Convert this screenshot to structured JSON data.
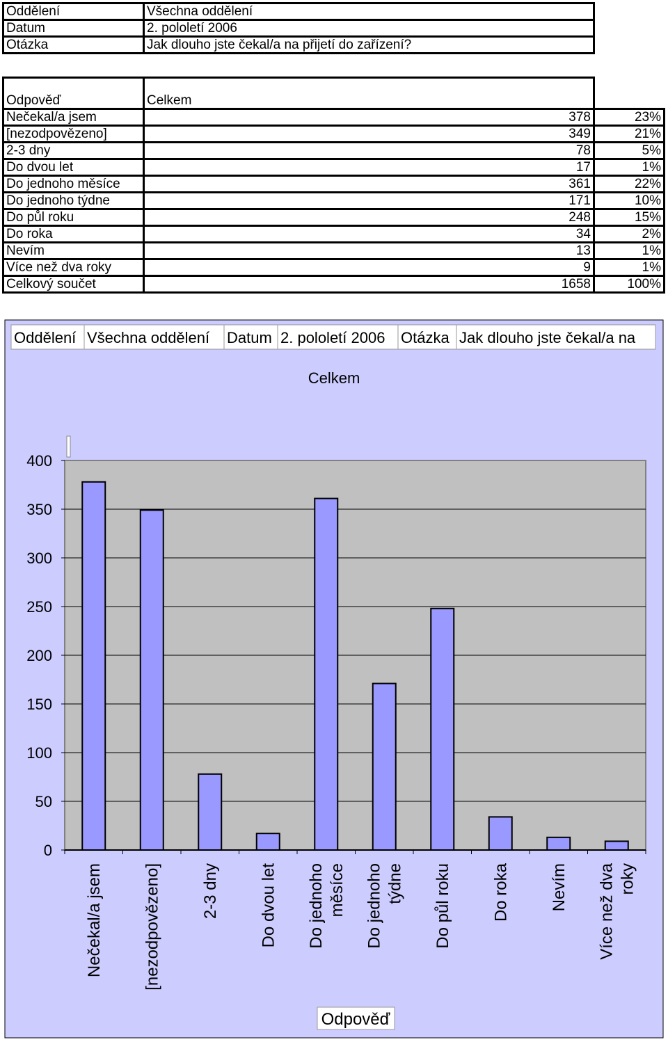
{
  "header": {
    "rows": [
      {
        "key": "Oddělení",
        "value": "Všechna oddělení"
      },
      {
        "key": "Datum",
        "value": "2. pololetí 2006"
      },
      {
        "key": "Otázka",
        "value": "Jak dlouho jste čekal/a na přijetí do zařízení?"
      }
    ]
  },
  "table": {
    "col_answer": "Odpověď",
    "col_total": "Celkem",
    "rows": [
      {
        "label": " Nečekal/a jsem",
        "count": "378",
        "pct": "23%"
      },
      {
        "label": "[nezodpovězeno]",
        "count": "349",
        "pct": "21%"
      },
      {
        "label": "2-3 dny",
        "count": "78",
        "pct": "5%"
      },
      {
        "label": "Do dvou let",
        "count": "17",
        "pct": "1%"
      },
      {
        "label": "Do jednoho měsíce",
        "count": "361",
        "pct": "22%"
      },
      {
        "label": "Do jednoho týdne",
        "count": "171",
        "pct": "10%"
      },
      {
        "label": "Do půl roku",
        "count": "248",
        "pct": "15%"
      },
      {
        "label": "Do roka",
        "count": "34",
        "pct": "2%"
      },
      {
        "label": "Nevím",
        "count": "13",
        "pct": "1%"
      },
      {
        "label": "Více než dva roky",
        "count": "9",
        "pct": "1%"
      }
    ],
    "total": {
      "label": "Celkový součet",
      "count": "1658",
      "pct": "100%"
    }
  },
  "chart_filters": [
    "Oddělení",
    "Všechna oddělení",
    "Datum",
    "2. pololetí 2006",
    "Otázka",
    "Jak dlouho jste čekal/a na"
  ],
  "colors": {
    "background": "#ccccff",
    "plot": "#c0c0c0",
    "bar": "#9999ff"
  },
  "chart_data": {
    "type": "bar",
    "title": "Celkem",
    "xlabel": "Odpověď",
    "ylabel": "",
    "categories": [
      "Nečekal/a jsem",
      "[nezodpovězeno]",
      "2-3 dny",
      "Do dvou let",
      "Do jednoho měsíce",
      "Do jednoho týdne",
      "Do půl roku",
      "Do roka",
      "Nevím",
      "Více než dva roky"
    ],
    "values": [
      378,
      349,
      78,
      17,
      361,
      171,
      248,
      34,
      13,
      9
    ],
    "ylim": [
      0,
      400
    ],
    "yticks": [
      0,
      50,
      100,
      150,
      200,
      250,
      300,
      350,
      400
    ],
    "grid": true,
    "legend": "none"
  }
}
